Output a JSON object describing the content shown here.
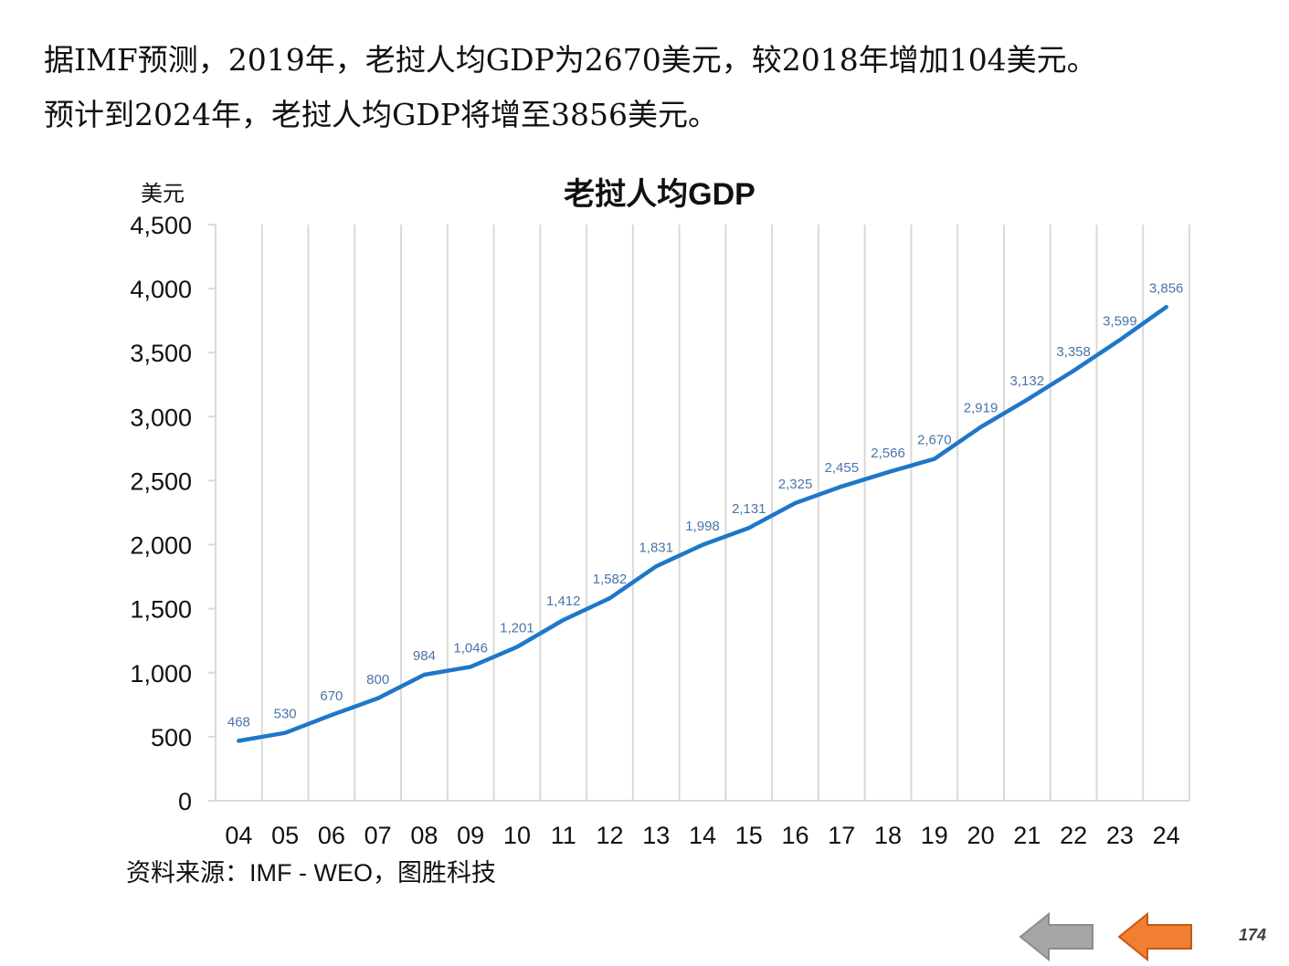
{
  "intro": {
    "line1": "据IMF预测，2019年，老挝人均GDP为2670美元，较2018年增加104美元。",
    "line2": "预计到2024年，老挝人均GDP将增至3856美元。"
  },
  "chart_data": {
    "type": "line",
    "title": "老挝人均GDP",
    "ylabel": "美元",
    "xlabel": "",
    "categories": [
      "04",
      "05",
      "06",
      "07",
      "08",
      "09",
      "10",
      "11",
      "12",
      "13",
      "14",
      "15",
      "16",
      "17",
      "18",
      "19",
      "20",
      "21",
      "22",
      "23",
      "24"
    ],
    "series": [
      {
        "values": [
          468,
          530,
          670,
          800,
          984,
          1046,
          1201,
          1412,
          1582,
          1831,
          1998,
          2131,
          2325,
          2455,
          2566,
          2670,
          2919,
          3132,
          3358,
          3599,
          3856
        ],
        "data_labels": [
          "468",
          "530",
          "670",
          "800",
          "984",
          "1,046",
          "1,201",
          "1,412",
          "1,582",
          "1,831",
          "1,998",
          "2,131",
          "2,325",
          "2,455",
          "2,566",
          "2,670",
          "2,919",
          "3,132",
          "3,358",
          "3,599",
          "3,856"
        ]
      }
    ],
    "ylim": [
      0,
      4500
    ],
    "yticks": [
      0,
      500,
      1000,
      1500,
      2000,
      2500,
      3000,
      3500,
      4000,
      4500
    ],
    "ytick_labels": [
      "0",
      "500",
      "1,000",
      "1,500",
      "2,000",
      "2,500",
      "3,000",
      "3,500",
      "4,000",
      "4,500"
    ],
    "grid": "vertical",
    "line_color": "#1f77c8",
    "label_color": "#4a74a8",
    "gridline_color": "#d9d9d9"
  },
  "source": "资料来源：IMF - WEO，图胜科技",
  "nav": {
    "back_color": "#a6a6a6",
    "prev_color": "#f07f32"
  },
  "page_number": "174"
}
